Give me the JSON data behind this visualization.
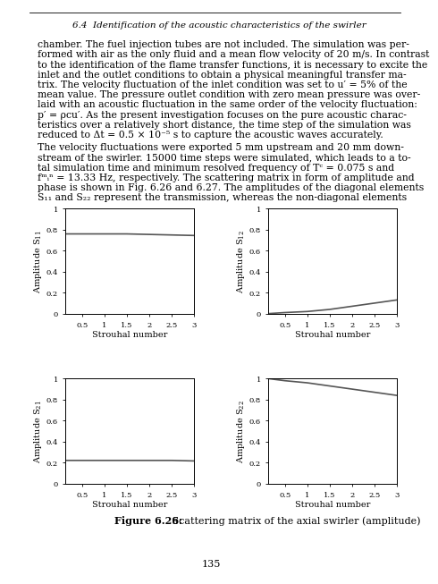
{
  "header_text": "6.4  Identification of the acoustic characteristics of the swirler",
  "page_number": "135",
  "strouhal_x": [
    0.13,
    0.5,
    1.0,
    1.5,
    2.0,
    2.5,
    3.0
  ],
  "s11_y": [
    0.76,
    0.76,
    0.76,
    0.76,
    0.755,
    0.75,
    0.745
  ],
  "s12_y": [
    0.0,
    0.01,
    0.02,
    0.04,
    0.07,
    0.1,
    0.13
  ],
  "s21_y": [
    0.22,
    0.22,
    0.22,
    0.22,
    0.22,
    0.22,
    0.215
  ],
  "s22_y": [
    1.0,
    0.98,
    0.96,
    0.93,
    0.9,
    0.87,
    0.84
  ],
  "xlim": [
    0.13,
    3.0
  ],
  "ylim": [
    0,
    1
  ],
  "xticks": [
    0.5,
    1.0,
    1.5,
    2.0,
    2.5,
    3.0
  ],
  "xtick_labels": [
    "0.5",
    "1",
    "1.5",
    "2",
    "2.5",
    "3"
  ],
  "yticks": [
    0,
    0.2,
    0.4,
    0.6,
    0.8,
    1
  ],
  "line_color": "#555555",
  "line_width": 1.2,
  "font_family": "serif",
  "text_color": "#000000",
  "bg_color": "#ffffff",
  "para1_lines": [
    "chamber. The fuel injection tubes are not included. The simulation was per-",
    "formed with air as the only fluid and a mean flow velocity of 20 m/s. In contrast",
    "to the identification of the flame transfer functions, it is necessary to excite the",
    "inlet and the outlet conditions to obtain a physical meaningful transfer ma-",
    "trix. The velocity fluctuation of the inlet condition was set to u′ = 5% of the",
    "mean value. The pressure outlet condition with zero mean pressure was over-",
    "laid with an acoustic fluctuation in the same order of the velocity fluctuation:",
    "p′ = ρcu′. As the present investigation focuses on the pure acoustic charac-",
    "teristics over a relatively short distance, the time step of the simulation was",
    "reduced to Δt = 0.5 × 10⁻⁵ s to capture the acoustic waves accurately."
  ],
  "para2_lines": [
    "The velocity fluctuations were exported 5 mm upstream and 20 mm down-",
    "stream of the swirler. 15000 time steps were simulated, which leads to a to-",
    "tal simulation time and minimum resolved frequency of Tᶜ = 0.075 s and",
    "fᵐᵢⁿ = 13.33 Hz, respectively. The scattering matrix in form of amplitude and",
    "phase is shown in Fig. 6.26 and 6.27. The amplitudes of the diagonal elements",
    "S₁₁ and S₂₂ represent the transmission, whereas the non-diagonal elements"
  ],
  "caption_bold": "Figure 6.26:",
  "caption_normal": " Scattering matrix of the axial swirler (amplitude)"
}
